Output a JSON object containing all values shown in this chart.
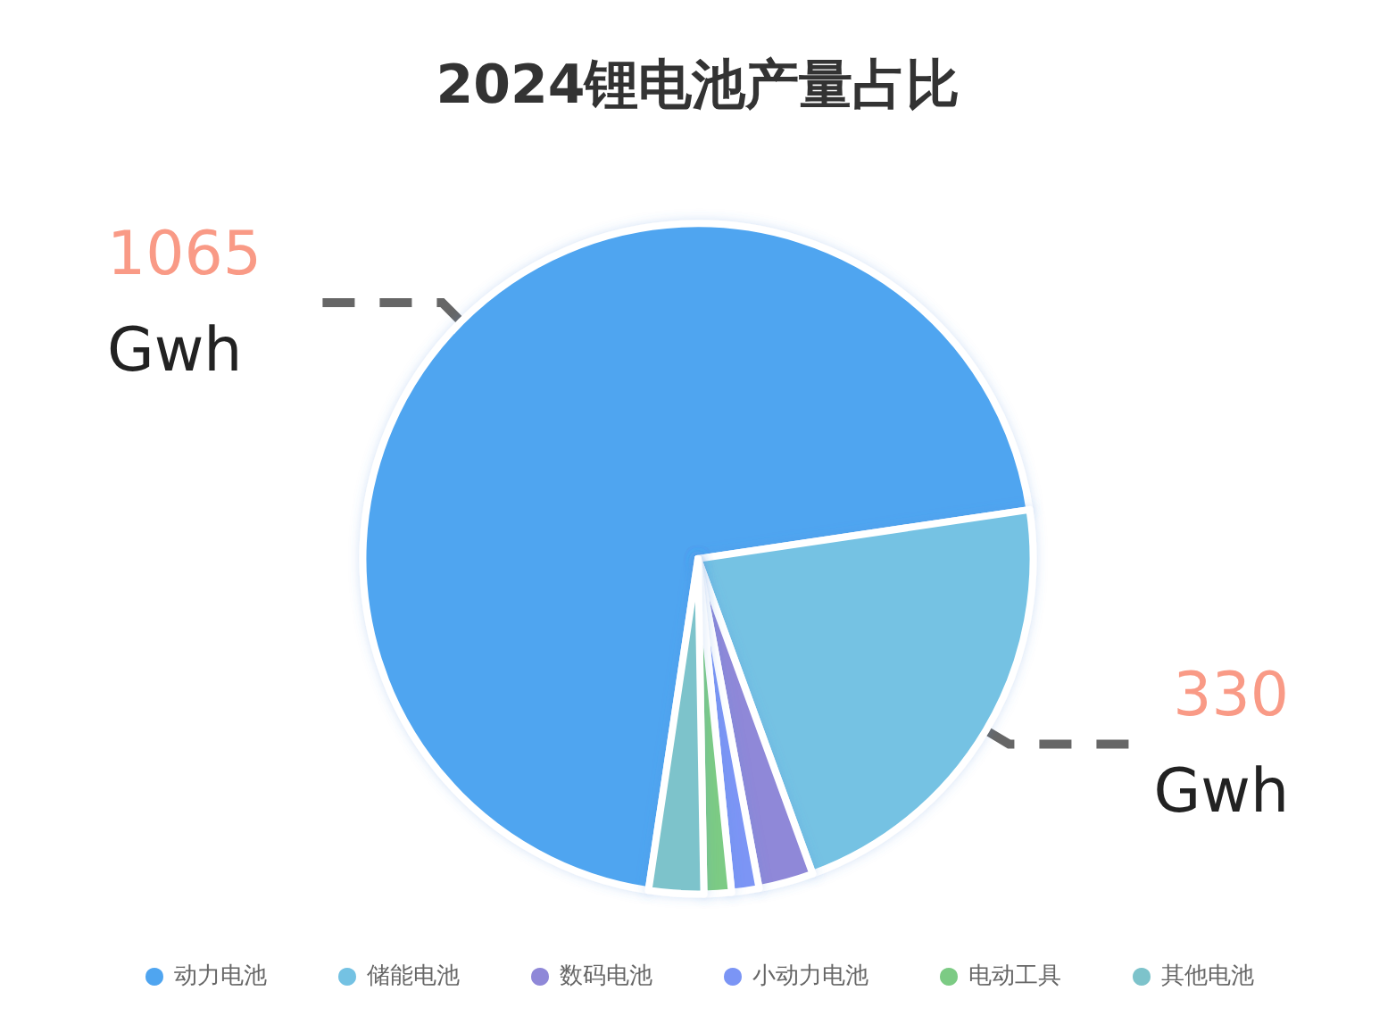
{
  "chart_data": {
    "type": "pie",
    "title": "2024锂电池产量占比",
    "categories": [
      "动力电池",
      "储能电池",
      "数码电池",
      "小动力电池",
      "电动工具",
      "其他电池"
    ],
    "values": [
      1065,
      330,
      40,
      20,
      20,
      40
    ],
    "colors": [
      "#4fa5f0",
      "#74c2e3",
      "#8f88d8",
      "#7b95f5",
      "#7ccb84",
      "#7dc3cb"
    ],
    "value_labels": [
      "1065 Gwh",
      "330 Gwh",
      null,
      null,
      null,
      null
    ],
    "legend": "bottom"
  }
}
